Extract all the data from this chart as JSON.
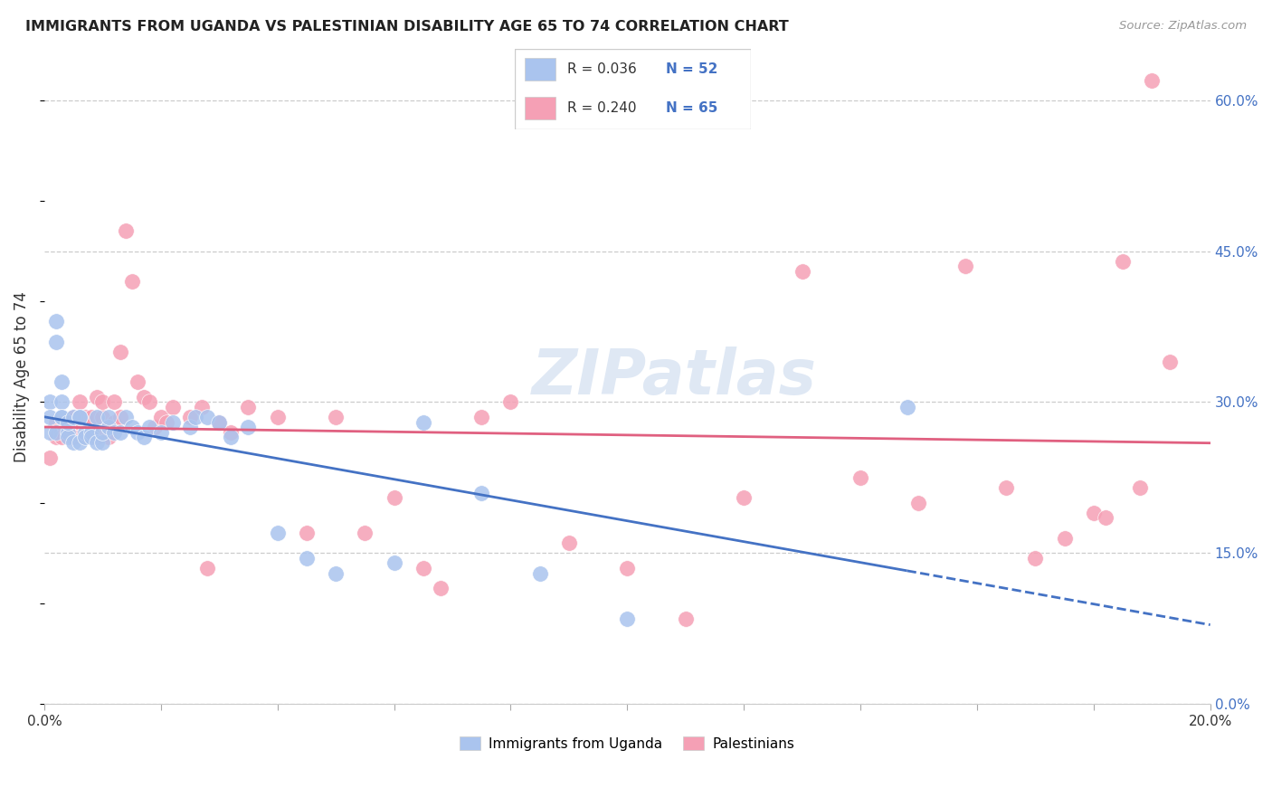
{
  "title": "IMMIGRANTS FROM UGANDA VS PALESTINIAN DISABILITY AGE 65 TO 74 CORRELATION CHART",
  "source": "Source: ZipAtlas.com",
  "ylabel": "Disability Age 65 to 74",
  "xlim": [
    0.0,
    0.2
  ],
  "ylim": [
    0.0,
    0.65
  ],
  "background_color": "#ffffff",
  "grid_color": "#cccccc",
  "color_uganda": "#aac4ee",
  "color_palestine": "#f5a0b5",
  "line_color_uganda": "#4472c4",
  "line_color_palestine": "#e06080",
  "right_axis_color": "#4472c4",
  "ytick_positions": [
    0.0,
    0.15,
    0.3,
    0.45,
    0.6
  ],
  "uganda_x": [
    0.001,
    0.001,
    0.001,
    0.002,
    0.002,
    0.002,
    0.003,
    0.003,
    0.003,
    0.003,
    0.004,
    0.004,
    0.004,
    0.005,
    0.005,
    0.006,
    0.006,
    0.006,
    0.007,
    0.007,
    0.008,
    0.008,
    0.009,
    0.009,
    0.01,
    0.01,
    0.011,
    0.011,
    0.012,
    0.013,
    0.014,
    0.015,
    0.016,
    0.017,
    0.018,
    0.02,
    0.022,
    0.025,
    0.026,
    0.028,
    0.03,
    0.032,
    0.035,
    0.04,
    0.045,
    0.05,
    0.06,
    0.065,
    0.075,
    0.085,
    0.1,
    0.148
  ],
  "uganda_y": [
    0.3,
    0.27,
    0.285,
    0.36,
    0.38,
    0.27,
    0.32,
    0.3,
    0.285,
    0.285,
    0.27,
    0.265,
    0.28,
    0.285,
    0.26,
    0.285,
    0.26,
    0.285,
    0.27,
    0.265,
    0.27,
    0.265,
    0.285,
    0.26,
    0.26,
    0.27,
    0.275,
    0.285,
    0.27,
    0.27,
    0.285,
    0.275,
    0.27,
    0.265,
    0.275,
    0.27,
    0.28,
    0.275,
    0.285,
    0.285,
    0.28,
    0.265,
    0.275,
    0.17,
    0.145,
    0.13,
    0.14,
    0.28,
    0.21,
    0.13,
    0.085,
    0.295
  ],
  "palestine_x": [
    0.001,
    0.002,
    0.002,
    0.003,
    0.003,
    0.004,
    0.005,
    0.005,
    0.006,
    0.006,
    0.007,
    0.007,
    0.008,
    0.008,
    0.009,
    0.009,
    0.01,
    0.01,
    0.011,
    0.011,
    0.012,
    0.012,
    0.013,
    0.013,
    0.014,
    0.015,
    0.016,
    0.017,
    0.018,
    0.019,
    0.02,
    0.021,
    0.022,
    0.025,
    0.027,
    0.028,
    0.03,
    0.032,
    0.035,
    0.04,
    0.045,
    0.05,
    0.055,
    0.06,
    0.065,
    0.068,
    0.075,
    0.08,
    0.09,
    0.1,
    0.11,
    0.12,
    0.13,
    0.14,
    0.15,
    0.158,
    0.165,
    0.17,
    0.175,
    0.18,
    0.182,
    0.185,
    0.188,
    0.19,
    0.193
  ],
  "palestine_y": [
    0.245,
    0.28,
    0.265,
    0.27,
    0.265,
    0.28,
    0.285,
    0.265,
    0.28,
    0.3,
    0.285,
    0.265,
    0.285,
    0.27,
    0.305,
    0.265,
    0.285,
    0.3,
    0.275,
    0.265,
    0.28,
    0.3,
    0.35,
    0.285,
    0.47,
    0.42,
    0.32,
    0.305,
    0.3,
    0.275,
    0.285,
    0.28,
    0.295,
    0.285,
    0.295,
    0.135,
    0.28,
    0.27,
    0.295,
    0.285,
    0.17,
    0.285,
    0.17,
    0.205,
    0.135,
    0.115,
    0.285,
    0.3,
    0.16,
    0.135,
    0.085,
    0.205,
    0.43,
    0.225,
    0.2,
    0.435,
    0.215,
    0.145,
    0.165,
    0.19,
    0.185,
    0.44,
    0.215,
    0.62,
    0.34
  ]
}
